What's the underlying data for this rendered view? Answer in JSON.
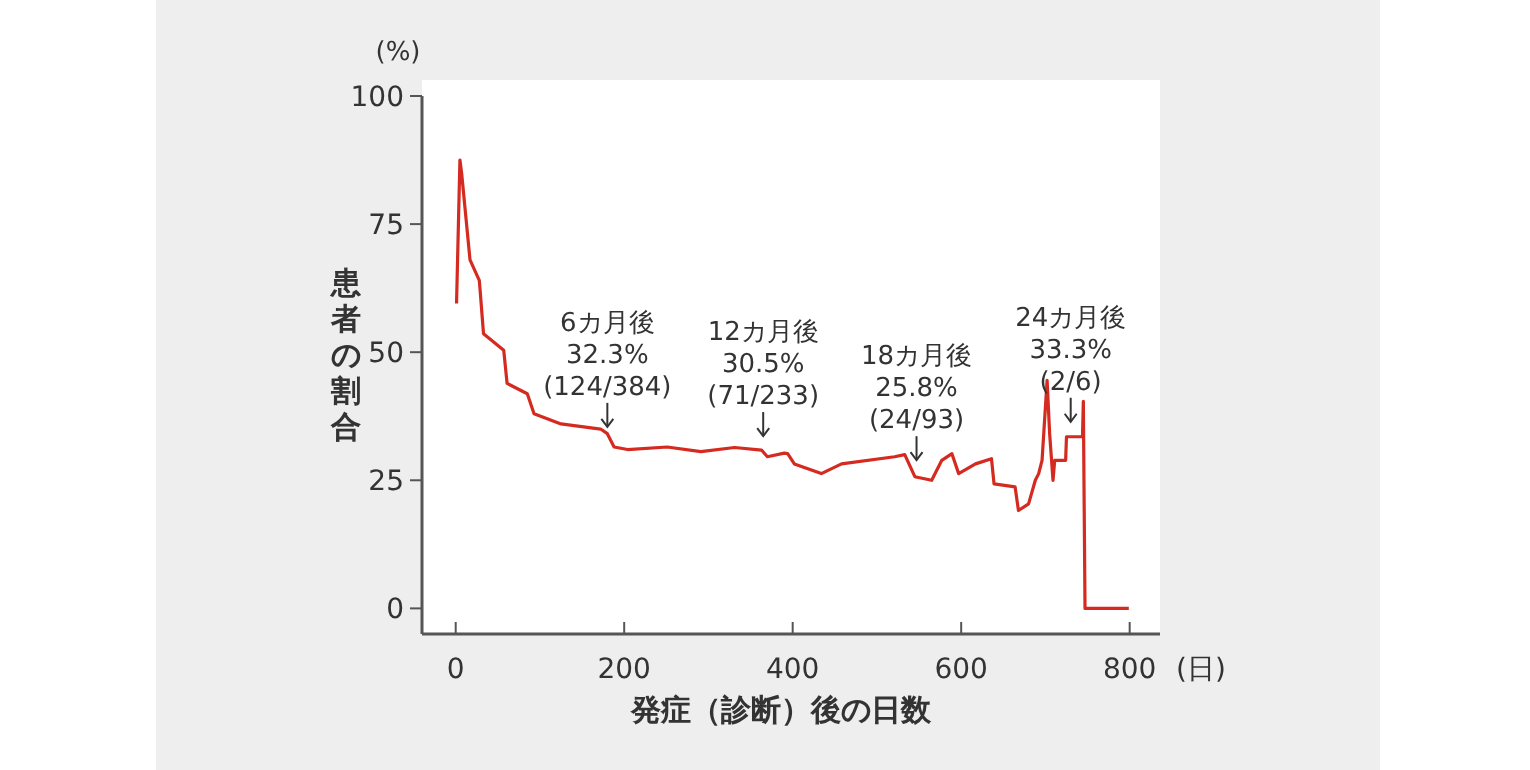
{
  "chart_data": {
    "type": "line",
    "xlabel": "発症（診断）後の日数",
    "ylabel": "患者の割合",
    "xlim": [
      -40,
      836
    ],
    "ylim": [
      -5,
      100
    ],
    "xticks": [
      0,
      200,
      400,
      600,
      800
    ],
    "yticks": [
      0,
      25,
      50,
      75,
      100
    ],
    "series": [
      {
        "color": "#d42a20",
        "line_style": "solid",
        "x": [
          1,
          5,
          7,
          17,
          28,
          29,
          33,
          57,
          61,
          85,
          93,
          125,
          172,
          180,
          188,
          204,
          251,
          291,
          331,
          363,
          370,
          390,
          394,
          402,
          434,
          458,
          521,
          533,
          545,
          565,
          577,
          589,
          597,
          617,
          636,
          639,
          664,
          668,
          680,
          688,
          692,
          696,
          702,
          705,
          709,
          711,
          724,
          725,
          744,
          745,
          746,
          747,
          799
        ],
        "values": [
          59.5,
          87.5,
          85,
          68,
          64,
          62,
          53.6,
          50.4,
          43.9,
          41.9,
          38,
          36,
          35,
          34.1,
          31.5,
          31,
          31.5,
          30.6,
          31.4,
          30.9,
          29.6,
          30.3,
          30.2,
          28.2,
          26.3,
          28.2,
          29.6,
          30,
          25.7,
          25,
          28.9,
          30.2,
          26.3,
          28.2,
          29.2,
          24.3,
          23.7,
          19.1,
          20.4,
          25,
          26.3,
          28.9,
          44.5,
          34.1,
          25,
          28.9,
          28.9,
          33.5,
          33.5,
          40.4,
          20,
          0,
          0
        ]
      }
    ],
    "annotations": [
      {
        "text": "6カ月後\n32.3%\n(124/384)",
        "x": 180,
        "y": 32.3
      },
      {
        "text": "12カ月後\n30.5%\n(71/233)",
        "x": 365,
        "y": 30.5
      },
      {
        "text": "18カ月後\n25.8%\n(24/93)",
        "x": 547,
        "y": 25.8
      },
      {
        "text": "24カ月後\n33.3%\n(2/6)",
        "x": 730,
        "y": 33.3
      },
      "(%)",
      "(日)"
    ]
  }
}
